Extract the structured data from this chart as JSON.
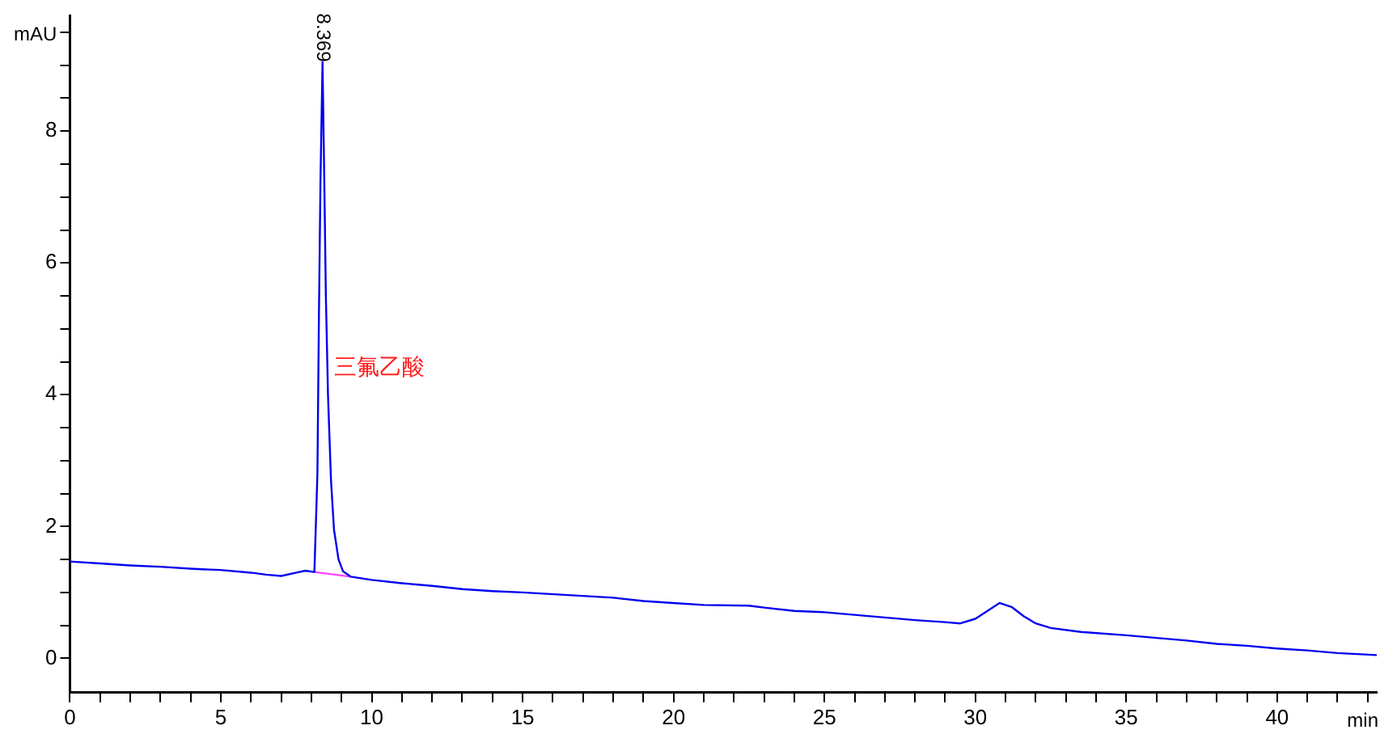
{
  "chart_data": {
    "type": "line",
    "xlabel": "min",
    "ylabel": "mAU",
    "series": [
      {
        "color": "#0000ee",
        "x": [
          0,
          1,
          2,
          3,
          4,
          5,
          6,
          6.5,
          7,
          7.5,
          7.8,
          8.1,
          8.2,
          8.25,
          8.3,
          8.369,
          8.42,
          8.48,
          8.55,
          8.65,
          8.75,
          8.9,
          9.05,
          9.3,
          10,
          11,
          12,
          13,
          14,
          15,
          16.5,
          18,
          19,
          20,
          21,
          22.5,
          23,
          24,
          25,
          26,
          27,
          28,
          29,
          29.5,
          30,
          30.4,
          30.8,
          31.2,
          31.6,
          32,
          32.5,
          33.5,
          35,
          36,
          37,
          38,
          39,
          40,
          41,
          42,
          43.3
        ],
        "values": [
          1.47,
          1.44,
          1.41,
          1.39,
          1.36,
          1.34,
          1.3,
          1.27,
          1.25,
          1.3,
          1.33,
          1.31,
          2.8,
          5.2,
          7.2,
          9.05,
          7.5,
          5.5,
          4.0,
          2.7,
          1.95,
          1.5,
          1.32,
          1.24,
          1.19,
          1.14,
          1.1,
          1.05,
          1.02,
          1.0,
          0.96,
          0.92,
          0.87,
          0.84,
          0.81,
          0.8,
          0.77,
          0.72,
          0.7,
          0.66,
          0.62,
          0.58,
          0.55,
          0.53,
          0.6,
          0.72,
          0.84,
          0.78,
          0.64,
          0.53,
          0.46,
          0.4,
          0.35,
          0.31,
          0.27,
          0.22,
          0.19,
          0.15,
          0.12,
          0.08,
          0.05
        ]
      },
      {
        "color": "#ff44ff",
        "x": [
          8.1,
          9.3
        ],
        "values": [
          1.31,
          1.24
        ]
      }
    ],
    "xlim": [
      0,
      43.3
    ],
    "ylim": [
      -0.52,
      9.75
    ],
    "xticks": [
      0,
      {
        "value": 1,
        "label": null
      },
      {
        "value": 2,
        "label": null
      },
      {
        "value": 3,
        "label": null
      },
      {
        "value": 4,
        "label": null
      },
      5,
      {
        "value": 6,
        "label": null
      },
      {
        "value": 7,
        "label": null
      },
      {
        "value": 8,
        "label": null
      },
      {
        "value": 9,
        "label": null
      },
      10,
      {
        "value": 11,
        "label": null
      },
      {
        "value": 12,
        "label": null
      },
      {
        "value": 13,
        "label": null
      },
      {
        "value": 14,
        "label": null
      },
      15,
      {
        "value": 16,
        "label": null
      },
      {
        "value": 17,
        "label": null
      },
      {
        "value": 18,
        "label": null
      },
      {
        "value": 19,
        "label": null
      },
      20,
      {
        "value": 21,
        "label": null
      },
      {
        "value": 22,
        "label": null
      },
      {
        "value": 23,
        "label": null
      },
      {
        "value": 24,
        "label": null
      },
      25,
      {
        "value": 26,
        "label": null
      },
      {
        "value": 27,
        "label": null
      },
      {
        "value": 28,
        "label": null
      },
      {
        "value": 29,
        "label": null
      },
      30,
      {
        "value": 31,
        "label": null
      },
      {
        "value": 32,
        "label": null
      },
      {
        "value": 33,
        "label": null
      },
      {
        "value": 34,
        "label": null
      },
      35,
      {
        "value": 36,
        "label": null
      },
      {
        "value": 37,
        "label": null
      },
      {
        "value": 38,
        "label": null
      },
      {
        "value": 39,
        "label": null
      },
      40,
      {
        "value": 41,
        "label": null
      },
      {
        "value": 42,
        "label": null
      },
      {
        "value": 43,
        "label": null
      }
    ],
    "yticks": [
      0,
      {
        "value": 0.5,
        "label": null
      },
      {
        "value": 1,
        "label": null
      },
      {
        "value": 1.5,
        "label": null
      },
      2,
      {
        "value": 2.5,
        "label": null
      },
      {
        "value": 3,
        "label": null
      },
      {
        "value": 3.5,
        "label": null
      },
      4,
      {
        "value": 4.5,
        "label": null
      },
      {
        "value": 5,
        "label": null
      },
      {
        "value": 5.5,
        "label": null
      },
      6,
      {
        "value": 6.5,
        "label": null
      },
      {
        "value": 7,
        "label": null
      },
      {
        "value": 7.5,
        "label": null
      },
      8,
      {
        "value": 8.5,
        "label": null
      },
      {
        "value": 9,
        "label": null
      },
      {
        "value": 9.5,
        "label": null
      }
    ],
    "annotations": [
      {
        "text": "8.369",
        "x": 8.369,
        "y": 9.05
      },
      {
        "text": "三氟乙酸",
        "x": 8.55,
        "y": 4.4
      }
    ],
    "grid": false,
    "legend": false,
    "marker": "none",
    "line_style": "solid"
  }
}
